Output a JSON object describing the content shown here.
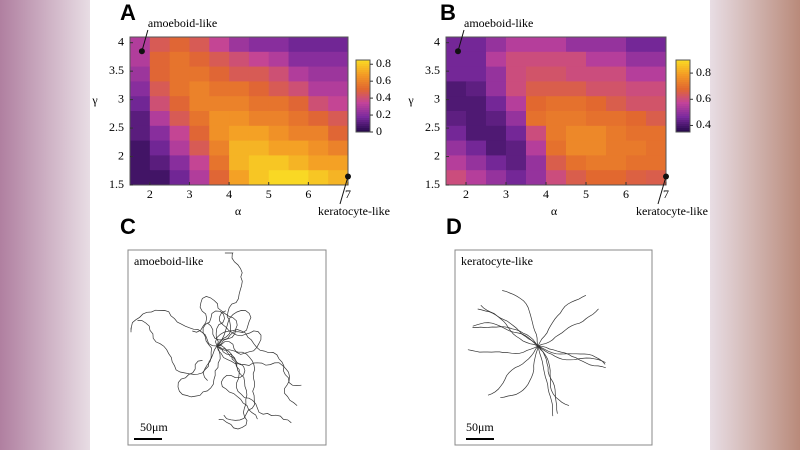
{
  "chart_data": [
    {
      "type": "heatmap",
      "panel": "A",
      "xlabel": "α",
      "ylabel": "γ",
      "xlim": [
        1.5,
        7
      ],
      "ylim": [
        1.5,
        4.1
      ],
      "xticks": [
        2,
        3,
        4,
        5,
        6,
        7
      ],
      "yticks": [
        1.5,
        2,
        2.5,
        3,
        3.5,
        4
      ],
      "colormap": [
        "#2a0b4f",
        "#7b2a9e",
        "#c2439a",
        "#e2682f",
        "#f39a25",
        "#f9d824"
      ],
      "clim": [
        0,
        0.85
      ],
      "cticks": [
        0,
        0.2,
        0.4,
        0.6,
        0.8
      ],
      "values": [
        [
          0.3,
          0.45,
          0.5,
          0.45,
          0.35,
          0.25,
          0.2,
          0.2,
          0.15,
          0.15,
          0.15
        ],
        [
          0.3,
          0.5,
          0.55,
          0.5,
          0.45,
          0.4,
          0.35,
          0.3,
          0.2,
          0.2,
          0.2
        ],
        [
          0.25,
          0.5,
          0.55,
          0.55,
          0.5,
          0.45,
          0.45,
          0.4,
          0.3,
          0.25,
          0.25
        ],
        [
          0.2,
          0.45,
          0.55,
          0.6,
          0.55,
          0.55,
          0.5,
          0.45,
          0.4,
          0.3,
          0.3
        ],
        [
          0.15,
          0.4,
          0.5,
          0.6,
          0.6,
          0.6,
          0.55,
          0.55,
          0.5,
          0.4,
          0.35
        ],
        [
          0.1,
          0.3,
          0.45,
          0.55,
          0.65,
          0.65,
          0.6,
          0.6,
          0.55,
          0.5,
          0.45
        ],
        [
          0.1,
          0.2,
          0.35,
          0.5,
          0.65,
          0.7,
          0.7,
          0.65,
          0.6,
          0.6,
          0.5
        ],
        [
          0.05,
          0.15,
          0.3,
          0.45,
          0.6,
          0.75,
          0.75,
          0.7,
          0.7,
          0.65,
          0.6
        ],
        [
          0.05,
          0.1,
          0.2,
          0.35,
          0.55,
          0.75,
          0.8,
          0.8,
          0.75,
          0.7,
          0.7
        ],
        [
          0.05,
          0.05,
          0.15,
          0.3,
          0.5,
          0.7,
          0.8,
          0.85,
          0.85,
          0.8,
          0.75
        ]
      ],
      "annotations": [
        {
          "text": "amoeboid-like",
          "x": 1.8,
          "y": 3.85
        },
        {
          "text": "keratocyte-like",
          "x": 7,
          "y": 1.65
        }
      ]
    },
    {
      "type": "heatmap",
      "panel": "B",
      "xlabel": "α",
      "ylabel": "γ",
      "xlim": [
        1.5,
        7
      ],
      "ylim": [
        1.5,
        4.1
      ],
      "xticks": [
        2,
        3,
        4,
        5,
        6,
        7
      ],
      "yticks": [
        1.5,
        2,
        2.5,
        3,
        3.5,
        4
      ],
      "colormap": [
        "#2a0b4f",
        "#7b2a9e",
        "#c2439a",
        "#e2682f",
        "#f39a25",
        "#f9d824"
      ],
      "clim": [
        0.35,
        0.9
      ],
      "cticks": [
        0.4,
        0.6,
        0.8
      ],
      "values": [
        [
          0.45,
          0.45,
          0.5,
          0.55,
          0.55,
          0.55,
          0.5,
          0.5,
          0.5,
          0.45,
          0.45
        ],
        [
          0.45,
          0.45,
          0.55,
          0.6,
          0.6,
          0.6,
          0.6,
          0.55,
          0.55,
          0.5,
          0.5
        ],
        [
          0.45,
          0.45,
          0.5,
          0.6,
          0.62,
          0.62,
          0.6,
          0.6,
          0.6,
          0.55,
          0.55
        ],
        [
          0.4,
          0.42,
          0.5,
          0.6,
          0.65,
          0.65,
          0.65,
          0.62,
          0.62,
          0.6,
          0.6
        ],
        [
          0.4,
          0.4,
          0.45,
          0.55,
          0.68,
          0.7,
          0.7,
          0.68,
          0.65,
          0.62,
          0.62
        ],
        [
          0.42,
          0.4,
          0.42,
          0.5,
          0.7,
          0.72,
          0.72,
          0.7,
          0.7,
          0.68,
          0.65
        ],
        [
          0.45,
          0.4,
          0.4,
          0.45,
          0.6,
          0.72,
          0.75,
          0.75,
          0.72,
          0.7,
          0.7
        ],
        [
          0.5,
          0.45,
          0.4,
          0.42,
          0.55,
          0.7,
          0.75,
          0.75,
          0.72,
          0.72,
          0.7
        ],
        [
          0.55,
          0.5,
          0.45,
          0.42,
          0.5,
          0.65,
          0.7,
          0.72,
          0.72,
          0.7,
          0.7
        ],
        [
          0.6,
          0.55,
          0.5,
          0.45,
          0.5,
          0.6,
          0.65,
          0.68,
          0.68,
          0.66,
          0.65
        ]
      ],
      "annotations": [
        {
          "text": "amoeboid-like",
          "x": 1.8,
          "y": 3.85
        },
        {
          "text": "keratocyte-like",
          "x": 7,
          "y": 1.65
        }
      ]
    }
  ],
  "panels": {
    "C": {
      "letter": "C",
      "title": "amoeboid-like",
      "scale_bar": "50μm"
    },
    "D": {
      "letter": "D",
      "title": "keratocyte-like",
      "scale_bar": "50μm"
    }
  }
}
